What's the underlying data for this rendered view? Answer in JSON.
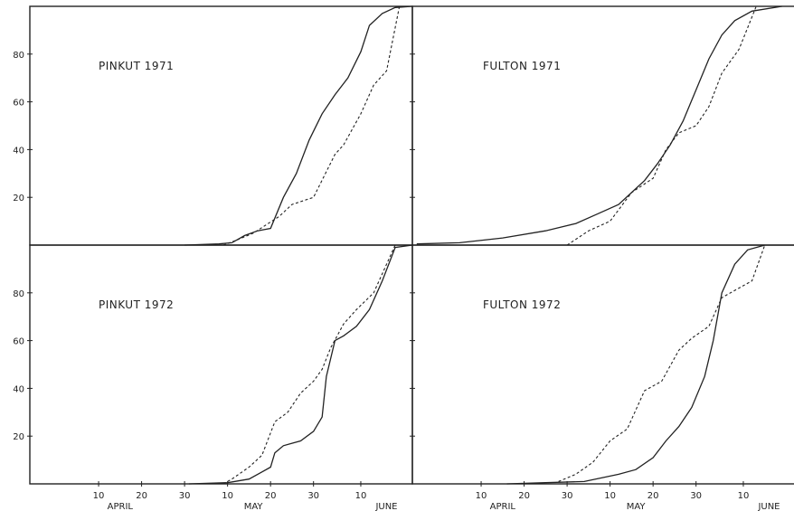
{
  "chart_data": [
    {
      "type": "line",
      "title": "PINKUT 1971",
      "ylim": [
        0,
        100
      ],
      "yticks": [
        "20",
        "40",
        "60",
        "80"
      ],
      "x_unit": "day of year",
      "xlim": [
        85,
        170
      ],
      "series": [
        {
          "style": "solid",
          "points": [
            [
              120,
              0
            ],
            [
              128,
              0.5
            ],
            [
              131,
              1
            ],
            [
              134,
              4
            ],
            [
              137,
              6
            ],
            [
              140,
              7
            ],
            [
              143,
              20
            ],
            [
              146,
              30
            ],
            [
              149,
              44
            ],
            [
              152,
              55
            ],
            [
              155,
              63
            ],
            [
              158,
              70
            ],
            [
              161,
              81
            ],
            [
              163,
              92
            ],
            [
              166,
              97
            ],
            [
              169,
              99.5
            ],
            [
              173,
              100
            ]
          ]
        },
        {
          "style": "dashed",
          "points": [
            [
              129,
              0
            ],
            [
              132,
              2
            ],
            [
              136,
              5
            ],
            [
              142,
              12
            ],
            [
              145,
              17
            ],
            [
              150,
              20
            ],
            [
              155,
              38
            ],
            [
              157,
              42
            ],
            [
              161,
              55
            ],
            [
              164,
              67
            ],
            [
              167,
              73
            ],
            [
              170,
              100
            ]
          ]
        }
      ]
    },
    {
      "type": "line",
      "title": "FULTON 1971",
      "ylim": [
        0,
        100
      ],
      "yticks": [
        "20",
        "40",
        "60",
        "80"
      ],
      "x_unit": "day of year",
      "xlim": [
        85,
        170
      ],
      "series": [
        {
          "style": "solid",
          "points": [
            [
              85,
              0.5
            ],
            [
              95,
              1
            ],
            [
              105,
              3
            ],
            [
              115,
              6
            ],
            [
              122,
              9
            ],
            [
              127,
              13
            ],
            [
              132,
              17
            ],
            [
              135,
              22
            ],
            [
              138,
              27
            ],
            [
              141,
              34
            ],
            [
              144,
              42
            ],
            [
              147,
              52
            ],
            [
              150,
              65
            ],
            [
              153,
              78
            ],
            [
              156,
              88
            ],
            [
              159,
              94
            ],
            [
              163,
              98
            ],
            [
              170,
              100
            ]
          ]
        },
        {
          "style": "dashed",
          "points": [
            [
              120,
              0
            ],
            [
              125,
              6
            ],
            [
              130,
              10
            ],
            [
              135,
              22
            ],
            [
              140,
              28
            ],
            [
              143,
              40
            ],
            [
              146,
              47
            ],
            [
              150,
              50
            ],
            [
              153,
              58
            ],
            [
              156,
              72
            ],
            [
              160,
              82
            ],
            [
              164,
              100
            ]
          ]
        }
      ]
    },
    {
      "type": "line",
      "title": "PINKUT 1972",
      "ylim": [
        0,
        100
      ],
      "yticks": [
        "20",
        "40",
        "60",
        "80"
      ],
      "x_unit": "day of year",
      "xlim": [
        85,
        170
      ],
      "series": [
        {
          "style": "solid",
          "points": [
            [
              121,
              0
            ],
            [
              130,
              0.5
            ],
            [
              135,
              2
            ],
            [
              138,
              5
            ],
            [
              140,
              7
            ],
            [
              141,
              13
            ],
            [
              143,
              16
            ],
            [
              145,
              17
            ],
            [
              147,
              18
            ],
            [
              150,
              22
            ],
            [
              152,
              28
            ],
            [
              153,
              45
            ],
            [
              155,
              60
            ],
            [
              157,
              62
            ],
            [
              160,
              66
            ],
            [
              163,
              73
            ],
            [
              166,
              85
            ],
            [
              169,
              99
            ],
            [
              173,
              100
            ]
          ]
        },
        {
          "style": "dashed",
          "points": [
            [
              129,
              0
            ],
            [
              131,
              2
            ],
            [
              135,
              7
            ],
            [
              138,
              12
            ],
            [
              141,
              26
            ],
            [
              144,
              30
            ],
            [
              147,
              38
            ],
            [
              150,
              43
            ],
            [
              152,
              48
            ],
            [
              154,
              57
            ],
            [
              157,
              67
            ],
            [
              160,
              73
            ],
            [
              164,
              80
            ],
            [
              169,
              100
            ]
          ]
        }
      ]
    },
    {
      "type": "line",
      "title": "FULTON 1972",
      "ylim": [
        0,
        100
      ],
      "yticks": [
        "20",
        "40",
        "60",
        "80"
      ],
      "x_unit": "day of year",
      "xlim": [
        85,
        170
      ],
      "series": [
        {
          "style": "solid",
          "points": [
            [
              106,
              0
            ],
            [
              115,
              0.5
            ],
            [
              124,
              1
            ],
            [
              132,
              4
            ],
            [
              136,
              6
            ],
            [
              140,
              11
            ],
            [
              143,
              18
            ],
            [
              146,
              24
            ],
            [
              149,
              32
            ],
            [
              152,
              45
            ],
            [
              154,
              60
            ],
            [
              156,
              80
            ],
            [
              159,
              92
            ],
            [
              162,
              98
            ],
            [
              166,
              100
            ]
          ]
        },
        {
          "style": "dashed",
          "points": [
            [
              118,
              1
            ],
            [
              122,
              4
            ],
            [
              126,
              9
            ],
            [
              130,
              18
            ],
            [
              134,
              23
            ],
            [
              138,
              39
            ],
            [
              142,
              43
            ],
            [
              146,
              56
            ],
            [
              149,
              61
            ],
            [
              153,
              66
            ],
            [
              156,
              78
            ],
            [
              160,
              82
            ],
            [
              163,
              85
            ],
            [
              166,
              100
            ]
          ]
        }
      ]
    }
  ],
  "x_axis": {
    "ticks": [
      {
        "label": "10",
        "day": 100
      },
      {
        "label": "20",
        "day": 110
      },
      {
        "label": "30",
        "day": 120
      },
      {
        "label": "10",
        "day": 130
      },
      {
        "label": "20",
        "day": 140
      },
      {
        "label": "30",
        "day": 150
      },
      {
        "label": "10",
        "day": 161
      }
    ],
    "months": [
      {
        "label": "APRIL",
        "day": 105
      },
      {
        "label": "MAY",
        "day": 136
      },
      {
        "label": "JUNE",
        "day": 167
      }
    ]
  }
}
